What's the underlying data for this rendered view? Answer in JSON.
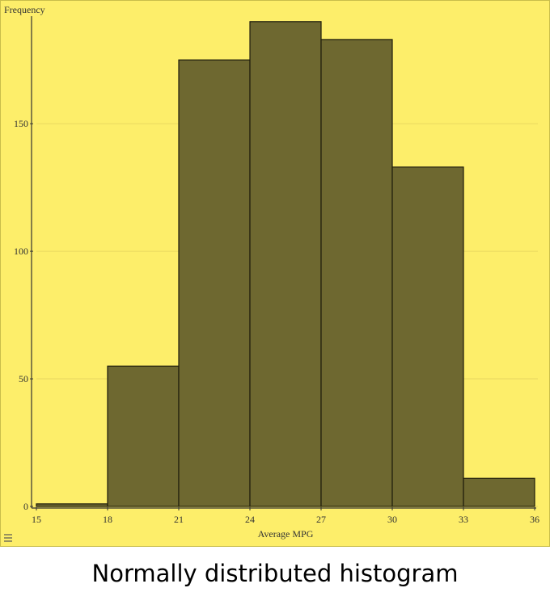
{
  "chart_data": {
    "type": "histogram",
    "ylabel": "Frequency",
    "xlabel": "Average MPG",
    "bins": [
      15,
      18,
      21,
      24,
      27,
      30,
      33,
      36
    ],
    "values": [
      1,
      55,
      175,
      190,
      183,
      133,
      11
    ],
    "color": "#6e6830",
    "xlim": [
      15,
      36
    ],
    "xticks": [
      15,
      18,
      21,
      24,
      27,
      30,
      33,
      36
    ],
    "ylim": [
      0,
      195
    ],
    "yticks": [
      0,
      50,
      100,
      150
    ],
    "grid": true
  },
  "caption": "Normally distributed histogram"
}
